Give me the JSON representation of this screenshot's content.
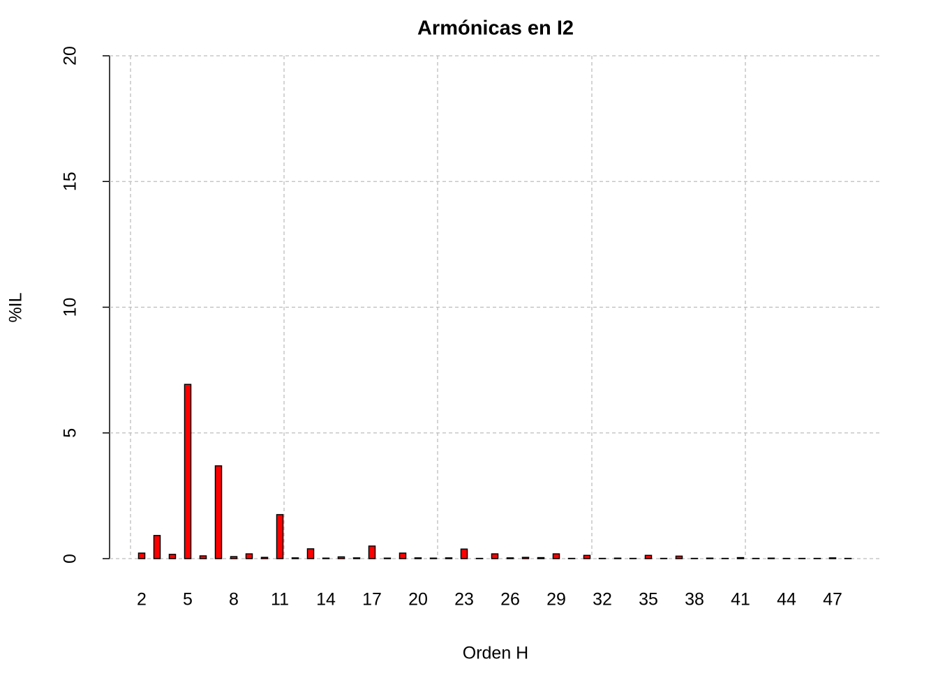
{
  "chart_data": {
    "type": "bar",
    "title": "Armónicas en I2",
    "x_label": "Orden H",
    "y_label": "%IL",
    "categories": [
      2,
      null,
      null,
      5,
      null,
      null,
      8,
      null,
      null,
      11,
      null,
      null,
      14,
      null,
      null,
      17,
      null,
      null,
      20,
      null,
      null,
      23,
      null,
      null,
      26,
      null,
      null,
      29,
      null,
      null,
      32,
      null,
      null,
      35,
      null,
      null,
      38,
      null,
      null,
      41,
      null,
      null,
      44,
      null,
      null,
      47,
      null
    ],
    "values": [
      0.22,
      0.92,
      0.17,
      6.93,
      0.11,
      3.69,
      0.08,
      0.19,
      0.05,
      1.75,
      0.03,
      0.39,
      0.02,
      0.07,
      0.03,
      0.5,
      0.02,
      0.22,
      0.03,
      0.02,
      0.03,
      0.38,
      0.01,
      0.19,
      0.03,
      0.05,
      0.04,
      0.19,
      0.01,
      0.13,
      0.01,
      0.02,
      0.01,
      0.13,
      0.01,
      0.1,
      0.01,
      0.02,
      0.01,
      0.04,
      0.01,
      0.02,
      0.01,
      0.01,
      0.01,
      0.03,
      0.01
    ],
    "color": "#ff0000",
    "ylim": [
      0,
      20
    ],
    "yticks": [
      0,
      5,
      10,
      15,
      20
    ],
    "grid": true
  }
}
